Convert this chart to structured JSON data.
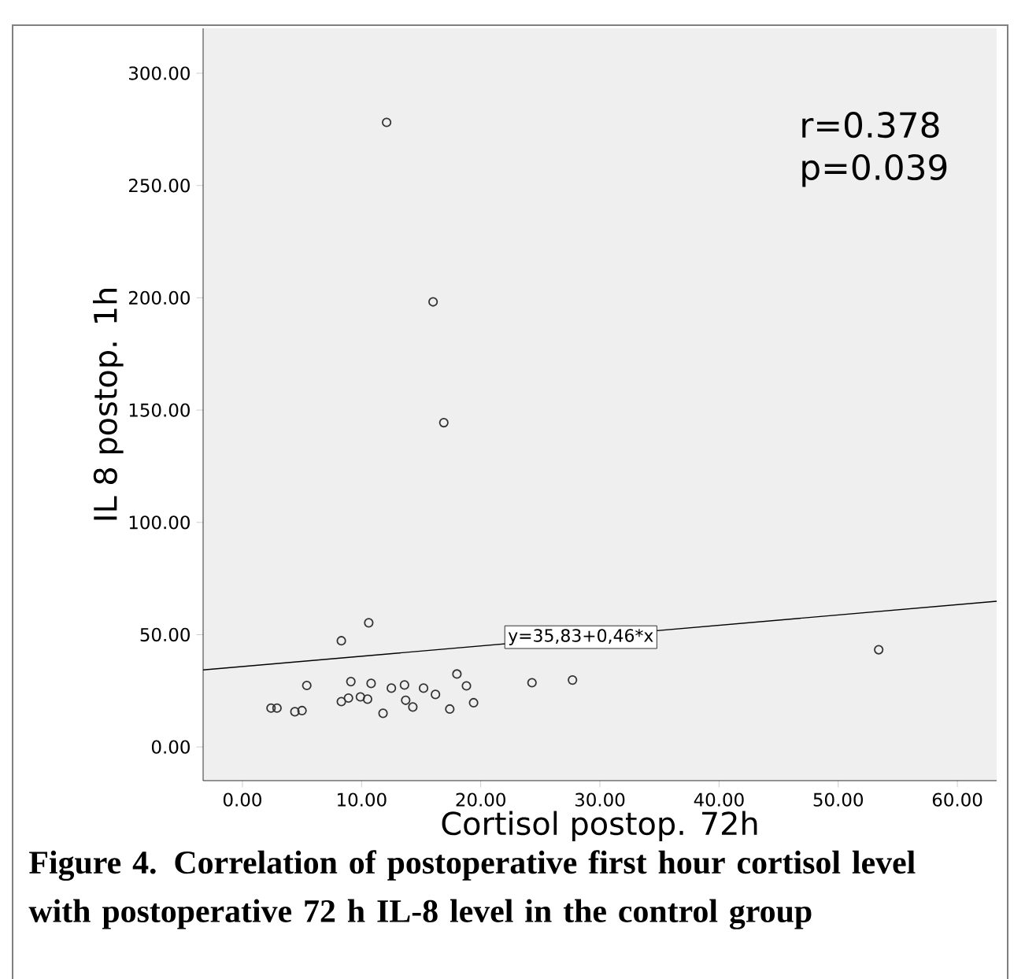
{
  "chart_data": {
    "type": "scatter",
    "xlabel": "Cortisol postop. 72h",
    "ylabel": "IL 8 postop. 1h",
    "xlim": [
      -3.3,
      63.3
    ],
    "ylim": [
      -15,
      320
    ],
    "xticks": [
      {
        "value": 0,
        "label": "0.00"
      },
      {
        "value": 10,
        "label": "10.00"
      },
      {
        "value": 20,
        "label": "20.00"
      },
      {
        "value": 30,
        "label": "30.00"
      },
      {
        "value": 40,
        "label": "40.00"
      },
      {
        "value": 50,
        "label": "50.00"
      },
      {
        "value": 60,
        "label": "60.00"
      }
    ],
    "yticks": [
      {
        "value": 0,
        "label": "0.00"
      },
      {
        "value": 50,
        "label": "50.00"
      },
      {
        "value": 100,
        "label": "100.00"
      },
      {
        "value": 150,
        "label": "150.00"
      },
      {
        "value": 200,
        "label": "200.00"
      },
      {
        "value": 250,
        "label": "250.00"
      },
      {
        "value": 300,
        "label": "300.00"
      }
    ],
    "grid": false,
    "marker": "circle",
    "series": [
      {
        "color": "#333333",
        "x": [
          2.4,
          2.9,
          4.4,
          5.0,
          5.4,
          8.3,
          10.6,
          9.1,
          8.3,
          8.9,
          9.9,
          10.5,
          10.8,
          11.8,
          12.5,
          13.6,
          13.7,
          14.3,
          15.2,
          16.2,
          17.4,
          18.0,
          18.8,
          19.4,
          24.3,
          27.7,
          53.4,
          12.1,
          16.0,
          16.9
        ],
        "values": [
          17.3,
          17.3,
          15.7,
          16.2,
          27.4,
          47.3,
          55.3,
          29.1,
          20.2,
          21.8,
          22.3,
          21.3,
          28.3,
          15.0,
          26.2,
          27.6,
          20.8,
          17.8,
          26.2,
          23.4,
          16.9,
          32.5,
          27.2,
          19.7,
          28.6,
          29.8,
          43.3,
          278.1,
          198.2,
          144.4
        ]
      },
      {
        "type": "line",
        "marker": "none",
        "line_style": "solid",
        "color": "#000000",
        "x": [
          -3.3,
          63.3
        ],
        "values": [
          34.3,
          64.9
        ]
      }
    ],
    "annotations": [
      {
        "text": "y=35,83+0,46*x",
        "x": 28.4,
        "y": 48.9
      },
      "r=0.378",
      "p=0.039",
      "Figure 4. Correlation of postoperative first hour cortisol level with postoperative 72 h IL-8 level in the control group"
    ]
  }
}
